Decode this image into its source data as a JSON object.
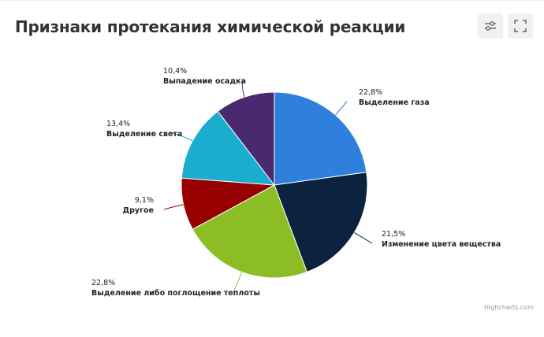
{
  "header": {
    "title": "Признаки протекания химической реакции"
  },
  "toolbar": {
    "settings_icon": "sliders-icon",
    "fullscreen_icon": "fullscreen-icon"
  },
  "credits": "Highcharts.com",
  "chart_data": {
    "type": "pie",
    "title": "Признаки протекания химической реакции",
    "slices": [
      {
        "name": "Выделение газа",
        "value": 22.8,
        "label": "22,8%",
        "color": "#2f80dc"
      },
      {
        "name": "Изменение цвета вещества",
        "value": 21.5,
        "label": "21,5%",
        "color": "#0b233f"
      },
      {
        "name": "Выделение либо поглощение теплоты",
        "value": 22.8,
        "label": "22,8%",
        "color": "#8cbd24"
      },
      {
        "name": "Другое",
        "value": 9.1,
        "label": "9,1%",
        "color": "#970000"
      },
      {
        "name": "Выделение света",
        "value": 13.4,
        "label": "13,4%",
        "color": "#1aadce"
      },
      {
        "name": "Выпадение осадка",
        "value": 10.4,
        "label": "10,4%",
        "color": "#492970"
      }
    ]
  }
}
